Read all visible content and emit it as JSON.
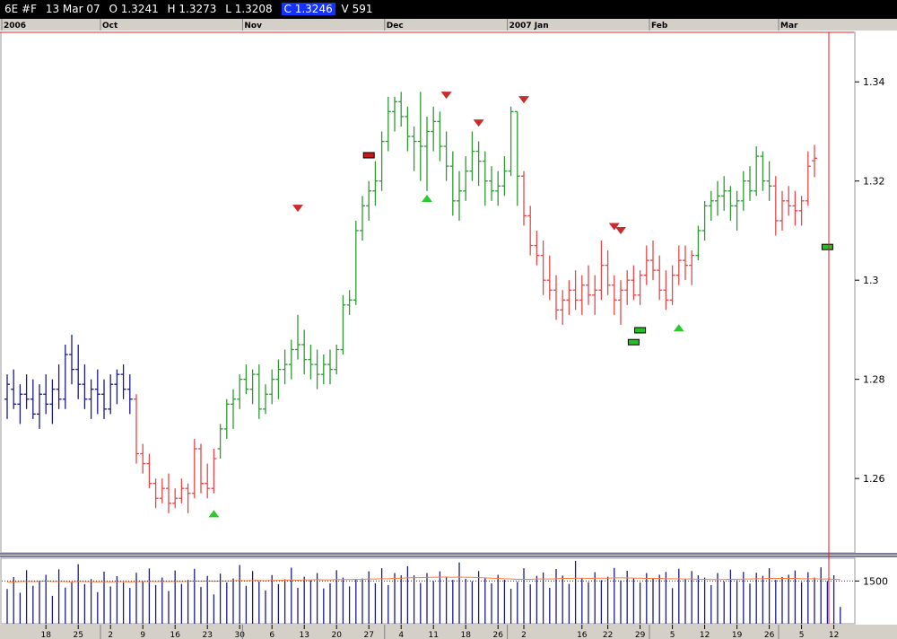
{
  "header": {
    "symbol": "6E #F",
    "date": "13 Mar 07",
    "open": "O 1.3241",
    "high": "H 1.3273",
    "low": "L 1.3208",
    "close": "C 1.3246",
    "volume": "V 591"
  },
  "months": [
    {
      "label": "2006",
      "bar": 0
    },
    {
      "label": "Oct",
      "bar": 15
    },
    {
      "label": "Nov",
      "bar": 37
    },
    {
      "label": "Dec",
      "bar": 59
    },
    {
      "label": "2007 Jan",
      "bar": 78
    },
    {
      "label": "Feb",
      "bar": 100
    },
    {
      "label": "Mar",
      "bar": 120
    }
  ],
  "day_ticks": [
    {
      "label": "18",
      "bar": 6
    },
    {
      "label": "25",
      "bar": 11
    },
    {
      "label": "2",
      "bar": 16
    },
    {
      "label": "9",
      "bar": 21
    },
    {
      "label": "16",
      "bar": 26
    },
    {
      "label": "23",
      "bar": 31
    },
    {
      "label": "30",
      "bar": 36
    },
    {
      "label": "6",
      "bar": 41
    },
    {
      "label": "13",
      "bar": 46
    },
    {
      "label": "20",
      "bar": 51
    },
    {
      "label": "27",
      "bar": 56
    },
    {
      "label": "4",
      "bar": 61
    },
    {
      "label": "11",
      "bar": 66
    },
    {
      "label": "18",
      "bar": 71
    },
    {
      "label": "26",
      "bar": 76
    },
    {
      "label": "2",
      "bar": 80
    },
    {
      "label": "16",
      "bar": 89
    },
    {
      "label": "22",
      "bar": 93
    },
    {
      "label": "29",
      "bar": 98
    },
    {
      "label": "5",
      "bar": 103
    },
    {
      "label": "12",
      "bar": 108
    },
    {
      "label": "19",
      "bar": 113
    },
    {
      "label": "26",
      "bar": 118
    },
    {
      "label": "5",
      "bar": 123
    },
    {
      "label": "12",
      "bar": 128
    }
  ],
  "chart_data": {
    "type": "ohlc",
    "price_axis": {
      "ticks": [
        1.26,
        1.28,
        1.3,
        1.32,
        1.34
      ],
      "tick_labels": [
        "1.26",
        "1.28",
        "1.3",
        "1.32",
        "1.34"
      ],
      "range": [
        1.245,
        1.35
      ]
    },
    "volume_axis": {
      "ticks": [
        1500
      ],
      "tick_labels": [
        "1500"
      ],
      "range": [
        0,
        2300
      ]
    },
    "colors": {
      "neutral": "#1a1a8c",
      "bearish": "#e8474a",
      "bullish": "#2e9c33",
      "volume": "#1a1a8c",
      "volume_ma": "#ff7a3c",
      "cursor": "#e02020",
      "signal_up": "#2fc92f",
      "signal_down": "#cc2b2b"
    },
    "bars": [
      [
        "n",
        1.276,
        1.281,
        1.272,
        1.279
      ],
      [
        "n",
        1.278,
        1.282,
        1.274,
        1.275
      ],
      [
        "n",
        1.275,
        1.279,
        1.271,
        1.277
      ],
      [
        "n",
        1.277,
        1.281,
        1.274,
        1.276
      ],
      [
        "n",
        1.276,
        1.28,
        1.272,
        1.273
      ],
      [
        "n",
        1.273,
        1.279,
        1.27,
        1.277
      ],
      [
        "n",
        1.277,
        1.281,
        1.273,
        1.275
      ],
      [
        "n",
        1.275,
        1.28,
        1.271,
        1.278
      ],
      [
        "n",
        1.278,
        1.283,
        1.274,
        1.276
      ],
      [
        "n",
        1.276,
        1.287,
        1.274,
        1.285
      ],
      [
        "n",
        1.285,
        1.289,
        1.279,
        1.282
      ],
      [
        "n",
        1.282,
        1.287,
        1.276,
        1.279
      ],
      [
        "n",
        1.279,
        1.283,
        1.274,
        1.276
      ],
      [
        "n",
        1.276,
        1.28,
        1.272,
        1.278
      ],
      [
        "n",
        1.278,
        1.282,
        1.273,
        1.277
      ],
      [
        "n",
        1.277,
        1.28,
        1.272,
        1.274
      ],
      [
        "n",
        1.274,
        1.281,
        1.273,
        1.279
      ],
      [
        "n",
        1.279,
        1.282,
        1.275,
        1.281
      ],
      [
        "n",
        1.281,
        1.283,
        1.276,
        1.278
      ],
      [
        "n",
        1.278,
        1.281,
        1.273,
        1.276
      ],
      [
        "r",
        1.276,
        1.277,
        1.263,
        1.265
      ],
      [
        "r",
        1.265,
        1.267,
        1.261,
        1.263
      ],
      [
        "r",
        1.263,
        1.265,
        1.258,
        1.259
      ],
      [
        "r",
        1.259,
        1.26,
        1.254,
        1.256
      ],
      [
        "r",
        1.256,
        1.26,
        1.255,
        1.258
      ],
      [
        "r",
        1.258,
        1.261,
        1.253,
        1.255
      ],
      [
        "r",
        1.255,
        1.258,
        1.254,
        1.256
      ],
      [
        "r",
        1.256,
        1.26,
        1.255,
        1.258
      ],
      [
        "r",
        1.258,
        1.259,
        1.253,
        1.257
      ],
      [
        "r",
        1.257,
        1.268,
        1.256,
        1.266
      ],
      [
        "r",
        1.266,
        1.267,
        1.257,
        1.259
      ],
      [
        "r",
        1.259,
        1.263,
        1.256,
        1.258
      ],
      [
        "r",
        1.258,
        1.266,
        1.257,
        1.264
      ],
      [
        "g",
        1.266,
        1.271,
        1.264,
        1.27
      ],
      [
        "g",
        1.27,
        1.276,
        1.268,
        1.275
      ],
      [
        "g",
        1.275,
        1.278,
        1.27,
        1.276
      ],
      [
        "g",
        1.276,
        1.281,
        1.274,
        1.28
      ],
      [
        "g",
        1.28,
        1.283,
        1.277,
        1.278
      ],
      [
        "g",
        1.278,
        1.282,
        1.275,
        1.281
      ],
      [
        "g",
        1.281,
        1.283,
        1.272,
        1.274
      ],
      [
        "g",
        1.274,
        1.279,
        1.273,
        1.277
      ],
      [
        "g",
        1.277,
        1.282,
        1.275,
        1.28
      ],
      [
        "g",
        1.28,
        1.284,
        1.276,
        1.282
      ],
      [
        "g",
        1.282,
        1.286,
        1.279,
        1.283
      ],
      [
        "g",
        1.283,
        1.288,
        1.28,
        1.286
      ],
      [
        "g",
        1.286,
        1.293,
        1.284,
        1.287
      ],
      [
        "g",
        1.287,
        1.29,
        1.281,
        1.284
      ],
      [
        "g",
        1.284,
        1.287,
        1.28,
        1.283
      ],
      [
        "g",
        1.283,
        1.286,
        1.278,
        1.281
      ],
      [
        "g",
        1.281,
        1.285,
        1.279,
        1.283
      ],
      [
        "g",
        1.283,
        1.286,
        1.279,
        1.282
      ],
      [
        "g",
        1.282,
        1.287,
        1.281,
        1.286
      ],
      [
        "g",
        1.286,
        1.297,
        1.285,
        1.295
      ],
      [
        "g",
        1.295,
        1.298,
        1.293,
        1.296
      ],
      [
        "g",
        1.296,
        1.312,
        1.295,
        1.31
      ],
      [
        "g",
        1.31,
        1.317,
        1.308,
        1.315
      ],
      [
        "g",
        1.315,
        1.32,
        1.312,
        1.318
      ],
      [
        "g",
        1.318,
        1.324,
        1.315,
        1.32
      ],
      [
        "g",
        1.32,
        1.33,
        1.318,
        1.328
      ],
      [
        "g",
        1.328,
        1.337,
        1.326,
        1.334
      ],
      [
        "g",
        1.334,
        1.337,
        1.33,
        1.336
      ],
      [
        "g",
        1.336,
        1.338,
        1.331,
        1.333
      ],
      [
        "g",
        1.333,
        1.335,
        1.326,
        1.329
      ],
      [
        "g",
        1.329,
        1.331,
        1.322,
        1.328
      ],
      [
        "g",
        1.328,
        1.338,
        1.32,
        1.327
      ],
      [
        "g",
        1.327,
        1.333,
        1.318,
        1.33
      ],
      [
        "g",
        1.33,
        1.335,
        1.326,
        1.332
      ],
      [
        "g",
        1.332,
        1.334,
        1.324,
        1.327
      ],
      [
        "g",
        1.327,
        1.33,
        1.32,
        1.323
      ],
      [
        "g",
        1.323,
        1.326,
        1.313,
        1.316
      ],
      [
        "g",
        1.316,
        1.322,
        1.312,
        1.318
      ],
      [
        "g",
        1.318,
        1.325,
        1.316,
        1.322
      ],
      [
        "g",
        1.322,
        1.33,
        1.32,
        1.326
      ],
      [
        "g",
        1.326,
        1.328,
        1.319,
        1.324
      ],
      [
        "g",
        1.324,
        1.326,
        1.315,
        1.32
      ],
      [
        "g",
        1.32,
        1.323,
        1.316,
        1.318
      ],
      [
        "g",
        1.318,
        1.322,
        1.315,
        1.319
      ],
      [
        "g",
        1.319,
        1.325,
        1.317,
        1.322
      ],
      [
        "g",
        1.322,
        1.335,
        1.321,
        1.334
      ],
      [
        "g",
        1.334,
        1.334,
        1.315,
        1.321
      ],
      [
        "r",
        1.321,
        1.322,
        1.311,
        1.313
      ],
      [
        "r",
        1.313,
        1.315,
        1.305,
        1.307
      ],
      [
        "r",
        1.307,
        1.31,
        1.303,
        1.305
      ],
      [
        "r",
        1.305,
        1.308,
        1.297,
        1.3
      ],
      [
        "r",
        1.3,
        1.305,
        1.296,
        1.298
      ],
      [
        "r",
        1.298,
        1.301,
        1.292,
        1.294
      ],
      [
        "r",
        1.294,
        1.298,
        1.291,
        1.296
      ],
      [
        "r",
        1.296,
        1.3,
        1.293,
        1.298
      ],
      [
        "r",
        1.298,
        1.302,
        1.294,
        1.296
      ],
      [
        "r",
        1.296,
        1.301,
        1.293,
        1.299
      ],
      [
        "r",
        1.299,
        1.303,
        1.295,
        1.297
      ],
      [
        "r",
        1.297,
        1.301,
        1.293,
        1.298
      ],
      [
        "r",
        1.298,
        1.308,
        1.296,
        1.303
      ],
      [
        "r",
        1.303,
        1.306,
        1.297,
        1.299
      ],
      [
        "r",
        1.299,
        1.301,
        1.293,
        1.296
      ],
      [
        "r",
        1.296,
        1.3,
        1.291,
        1.298
      ],
      [
        "r",
        1.298,
        1.302,
        1.295,
        1.3
      ],
      [
        "r",
        1.3,
        1.303,
        1.296,
        1.297
      ],
      [
        "r",
        1.297,
        1.302,
        1.295,
        1.301
      ],
      [
        "r",
        1.301,
        1.307,
        1.299,
        1.304
      ],
      [
        "r",
        1.304,
        1.308,
        1.3,
        1.302
      ],
      [
        "r",
        1.302,
        1.305,
        1.296,
        1.298
      ],
      [
        "r",
        1.298,
        1.302,
        1.294,
        1.296
      ],
      [
        "r",
        1.296,
        1.303,
        1.295,
        1.301
      ],
      [
        "r",
        1.301,
        1.307,
        1.299,
        1.304
      ],
      [
        "r",
        1.304,
        1.307,
        1.3,
        1.303
      ],
      [
        "r",
        1.303,
        1.306,
        1.299,
        1.305
      ],
      [
        "g",
        1.305,
        1.311,
        1.304,
        1.31
      ],
      [
        "g",
        1.31,
        1.316,
        1.308,
        1.315
      ],
      [
        "g",
        1.315,
        1.318,
        1.312,
        1.316
      ],
      [
        "g",
        1.316,
        1.32,
        1.313,
        1.317
      ],
      [
        "g",
        1.317,
        1.321,
        1.314,
        1.318
      ],
      [
        "g",
        1.318,
        1.319,
        1.312,
        1.315
      ],
      [
        "g",
        1.315,
        1.318,
        1.31,
        1.316
      ],
      [
        "g",
        1.316,
        1.322,
        1.314,
        1.32
      ],
      [
        "g",
        1.32,
        1.323,
        1.316,
        1.318
      ],
      [
        "g",
        1.318,
        1.327,
        1.317,
        1.325
      ],
      [
        "g",
        1.325,
        1.326,
        1.318,
        1.32
      ],
      [
        "g",
        1.32,
        1.324,
        1.316,
        1.319
      ],
      [
        "r",
        1.319,
        1.321,
        1.309,
        1.312
      ],
      [
        "r",
        1.312,
        1.318,
        1.31,
        1.316
      ],
      [
        "r",
        1.316,
        1.319,
        1.313,
        1.315
      ],
      [
        "r",
        1.315,
        1.318,
        1.311,
        1.314
      ],
      [
        "r",
        1.314,
        1.317,
        1.311,
        1.316
      ],
      [
        "r",
        1.316,
        1.326,
        1.315,
        1.323
      ],
      [
        "r",
        1.3241,
        1.3273,
        1.3208,
        1.3246
      ]
    ],
    "volume": [
      1220,
      1640,
      1090,
      1880,
      1330,
      1510,
      1720,
      980,
      1910,
      1270,
      1460,
      2090,
      1390,
      1570,
      1110,
      1830,
      1310,
      1670,
      1450,
      1260,
      1790,
      1500,
      1940,
      1360,
      1620,
      1150,
      1870,
      1400,
      1540,
      1930,
      1290,
      1680,
      1030,
      1760,
      1450,
      1590,
      2060,
      1330,
      1850,
      1480,
      1170,
      1710,
      1390,
      1560,
      1970,
      1260,
      1650,
      1520,
      1780,
      1240,
      1420,
      1880,
      1620,
      1310,
      1560,
      1590,
      1840,
      1420,
      1950,
      1360,
      1780,
      1700,
      2020,
      1700,
      1430,
      1780,
      1500,
      1840,
      1640,
      1540,
      2150,
      1580,
      1490,
      1850,
      1610,
      1420,
      1720,
      1540,
      1230,
      1470,
      1950,
      1380,
      1680,
      1800,
      1260,
      1920,
      1690,
      1400,
      2210,
      1610,
      1460,
      1810,
      1530,
      1650,
      1960,
      1520,
      1860,
      1610,
      1450,
      1780,
      1590,
      1720,
      1820,
      1250,
      1930,
      1560,
      1850,
      1700,
      1620,
      1360,
      1780,
      1480,
      1900,
      1530,
      1820,
      1410,
      1790,
      1680,
      1950,
      1540,
      1640,
      1720,
      1870,
      1460,
      1810,
      1620,
      1980,
      1500,
      1700,
      591
    ],
    "volume_ma": [
      1470,
      1470,
      1480,
      1490,
      1480,
      1490,
      1500,
      1480,
      1490,
      1480,
      1470,
      1490,
      1480,
      1480,
      1470,
      1480,
      1470,
      1480,
      1480,
      1470,
      1480,
      1480,
      1490,
      1480,
      1490,
      1480,
      1490,
      1480,
      1490,
      1500,
      1490,
      1500,
      1490,
      1500,
      1500,
      1510,
      1520,
      1510,
      1520,
      1520,
      1510,
      1520,
      1520,
      1530,
      1540,
      1530,
      1540,
      1540,
      1550,
      1540,
      1540,
      1550,
      1550,
      1550,
      1560,
      1560,
      1570,
      1570,
      1580,
      1580,
      1590,
      1600,
      1610,
      1620,
      1620,
      1630,
      1630,
      1640,
      1640,
      1630,
      1640,
      1630,
      1630,
      1620,
      1610,
      1600,
      1590,
      1580,
      1570,
      1560,
      1560,
      1560,
      1570,
      1570,
      1570,
      1580,
      1590,
      1590,
      1600,
      1600,
      1590,
      1600,
      1600,
      1600,
      1610,
      1610,
      1610,
      1600,
      1600,
      1590,
      1590,
      1590,
      1580,
      1580,
      1580,
      1570,
      1570,
      1560,
      1560,
      1550,
      1550,
      1550,
      1560,
      1560,
      1570,
      1570,
      1580,
      1580,
      1590,
      1590,
      1590,
      1590,
      1590,
      1580,
      1580,
      1580,
      1570,
      1570,
      1560,
      1550
    ],
    "markers": [
      {
        "type": "up",
        "bar": 32,
        "price": 1.2529
      },
      {
        "type": "rect_red",
        "bar": 56,
        "price": 1.3252
      },
      {
        "type": "down",
        "bar": 45,
        "price": 1.3145
      },
      {
        "type": "up",
        "bar": 65,
        "price": 1.3165
      },
      {
        "type": "down",
        "bar": 68,
        "price": 1.3373
      },
      {
        "type": "down",
        "bar": 73,
        "price": 1.3317
      },
      {
        "type": "down",
        "bar": 80,
        "price": 1.3364
      },
      {
        "type": "down",
        "bar": 94,
        "price": 1.3108
      },
      {
        "type": "down",
        "bar": 95,
        "price": 1.31
      },
      {
        "type": "rect_green",
        "bar": 97,
        "price": 1.2875
      },
      {
        "type": "rect_green",
        "bar": 98,
        "price": 1.2899
      },
      {
        "type": "up",
        "bar": 104,
        "price": 1.2904
      },
      {
        "type": "rect_green",
        "bar": 127,
        "price": 1.3067
      }
    ]
  }
}
